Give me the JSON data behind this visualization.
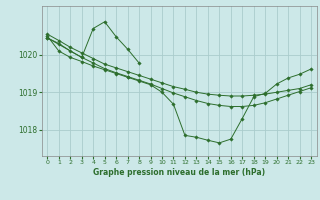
{
  "bg_color": "#cce8e8",
  "grid_color": "#aacccc",
  "line_color": "#2d6e2d",
  "title": "Graphe pression niveau de la mer (hPa)",
  "xlim": [
    -0.5,
    23.5
  ],
  "ylim": [
    1017.3,
    1021.3
  ],
  "yticks": [
    1018,
    1019,
    1020
  ],
  "xticks": [
    0,
    1,
    2,
    3,
    4,
    5,
    6,
    7,
    8,
    9,
    10,
    11,
    12,
    13,
    14,
    15,
    16,
    17,
    18,
    19,
    20,
    21,
    22,
    23
  ],
  "series": [
    {
      "x": [
        0,
        1,
        2,
        3,
        4,
        5,
        6,
        7,
        8,
        9,
        10,
        11,
        12,
        13,
        14,
        15,
        16,
        17,
        18,
        19,
        20,
        21,
        22,
        23
      ],
      "y": [
        1020.55,
        1020.38,
        1020.2,
        1020.05,
        1019.9,
        1019.75,
        1019.65,
        1019.55,
        1019.45,
        1019.35,
        1019.25,
        1019.15,
        1019.08,
        1019.0,
        1018.95,
        1018.92,
        1018.9,
        1018.9,
        1018.92,
        1018.95,
        1019.0,
        1019.05,
        1019.1,
        1019.2
      ]
    },
    {
      "x": [
        0,
        1,
        2,
        3,
        4,
        5,
        6,
        7,
        8,
        9,
        10,
        11,
        12,
        13,
        14,
        15,
        16,
        17,
        18,
        19,
        20,
        21,
        22,
        23
      ],
      "y": [
        1020.45,
        1020.3,
        1020.1,
        1019.93,
        1019.78,
        1019.63,
        1019.52,
        1019.42,
        1019.32,
        1019.22,
        1019.1,
        1018.98,
        1018.88,
        1018.78,
        1018.7,
        1018.65,
        1018.62,
        1018.62,
        1018.65,
        1018.72,
        1018.82,
        1018.92,
        1019.02,
        1019.12
      ]
    },
    {
      "x": [
        0,
        3,
        4,
        5,
        6,
        7,
        8
      ],
      "y": [
        1020.45,
        1019.93,
        1020.7,
        1020.88,
        1020.48,
        1020.15,
        1019.78
      ]
    },
    {
      "x": [
        0,
        1,
        2,
        3,
        4,
        5,
        6,
        7,
        8,
        9,
        10,
        11,
        12,
        13,
        14,
        15,
        16,
        17,
        18,
        19,
        20,
        21,
        22,
        23
      ],
      "y": [
        1020.5,
        1020.1,
        1019.93,
        1019.82,
        1019.7,
        1019.6,
        1019.5,
        1019.4,
        1019.3,
        1019.2,
        1019.0,
        1018.68,
        1017.85,
        1017.8,
        1017.72,
        1017.65,
        1017.75,
        1018.3,
        1018.88,
        1018.97,
        1019.22,
        1019.38,
        1019.48,
        1019.62
      ]
    }
  ]
}
